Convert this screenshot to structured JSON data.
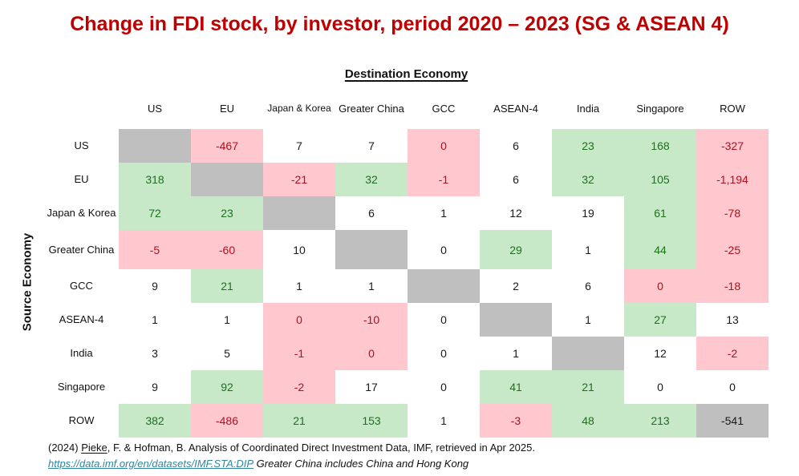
{
  "title": "Change in FDI stock, by investor, period 2020 – 2023 (SG & ASEAN 4)",
  "destination_header": "Destination Economy",
  "source_header": "Source Economy",
  "footnote": {
    "line1_prefix": "(2024) ",
    "line1_author": "Pieke",
    "line1_rest": ", F. & Hofman, B. Analysis of Coordinated Direct Investment Data, IMF, retrieved in Apr 2025.",
    "line2_link": "https://data.imf.org/en/datasets/IMF.STA:DIP",
    "line2_note": "Greater China includes China and Hong Kong"
  },
  "colors": {
    "title": "#c00000",
    "positive_bg": "#c7e9c8",
    "positive_text": "#1d701d",
    "negative_bg": "#ffc7ce",
    "negative_text": "#b01020",
    "diagonal_bg": "#bfbfbf",
    "link": "#31859c"
  },
  "chart_data": {
    "type": "heatmap",
    "title": "Change in FDI stock, by investor, period 2020 – 2023 (SG & ASEAN 4)",
    "x_axis_label": "Destination Economy",
    "y_axis_label": "Source Economy",
    "columns": [
      "US",
      "EU",
      "Japan & Korea",
      "Greater China",
      "GCC",
      "ASEAN-4",
      "India",
      "Singapore",
      "ROW"
    ],
    "rows": [
      "US",
      "EU",
      "Japan & Korea",
      "Greater China",
      "GCC",
      "ASEAN-4",
      "India",
      "Singapore",
      "ROW"
    ],
    "boxed_columns": [
      5,
      7
    ],
    "boxed_rows": [
      5,
      7
    ],
    "cell_color_legend": {
      "green": "increase highlight",
      "red": "decrease highlight",
      "gray": "diagonal / not applicable",
      "white": "neutral"
    },
    "cells": [
      [
        {
          "v": "",
          "bg": "gray"
        },
        {
          "v": "-467",
          "bg": "red"
        },
        {
          "v": "7",
          "bg": "white"
        },
        {
          "v": "7",
          "bg": "white"
        },
        {
          "v": "0",
          "bg": "red"
        },
        {
          "v": "6",
          "bg": "white"
        },
        {
          "v": "23",
          "bg": "green"
        },
        {
          "v": "168",
          "bg": "green"
        },
        {
          "v": "-327",
          "bg": "red"
        }
      ],
      [
        {
          "v": "318",
          "bg": "green"
        },
        {
          "v": "",
          "bg": "gray"
        },
        {
          "v": "-21",
          "bg": "red"
        },
        {
          "v": "32",
          "bg": "green"
        },
        {
          "v": "-1",
          "bg": "red"
        },
        {
          "v": "6",
          "bg": "white"
        },
        {
          "v": "32",
          "bg": "green"
        },
        {
          "v": "105",
          "bg": "green"
        },
        {
          "v": "-1,194",
          "bg": "red"
        }
      ],
      [
        {
          "v": "72",
          "bg": "green"
        },
        {
          "v": "23",
          "bg": "green"
        },
        {
          "v": "",
          "bg": "gray"
        },
        {
          "v": "6",
          "bg": "white"
        },
        {
          "v": "1",
          "bg": "white"
        },
        {
          "v": "12",
          "bg": "white"
        },
        {
          "v": "19",
          "bg": "white"
        },
        {
          "v": "61",
          "bg": "green"
        },
        {
          "v": "-78",
          "bg": "red"
        }
      ],
      [
        {
          "v": "-5",
          "bg": "red"
        },
        {
          "v": "-60",
          "bg": "red"
        },
        {
          "v": "10",
          "bg": "white"
        },
        {
          "v": "",
          "bg": "gray"
        },
        {
          "v": "0",
          "bg": "white"
        },
        {
          "v": "29",
          "bg": "green"
        },
        {
          "v": "1",
          "bg": "white"
        },
        {
          "v": "44",
          "bg": "green"
        },
        {
          "v": "-25",
          "bg": "red"
        }
      ],
      [
        {
          "v": "9",
          "bg": "white"
        },
        {
          "v": "21",
          "bg": "green"
        },
        {
          "v": "1",
          "bg": "white"
        },
        {
          "v": "1",
          "bg": "white"
        },
        {
          "v": "",
          "bg": "gray"
        },
        {
          "v": "2",
          "bg": "white"
        },
        {
          "v": "6",
          "bg": "white"
        },
        {
          "v": "0",
          "bg": "red"
        },
        {
          "v": "-18",
          "bg": "red"
        }
      ],
      [
        {
          "v": "1",
          "bg": "white"
        },
        {
          "v": "1",
          "bg": "white"
        },
        {
          "v": "0",
          "bg": "red"
        },
        {
          "v": "-10",
          "bg": "red"
        },
        {
          "v": "0",
          "bg": "white"
        },
        {
          "v": "",
          "bg": "gray"
        },
        {
          "v": "1",
          "bg": "white"
        },
        {
          "v": "27",
          "bg": "green"
        },
        {
          "v": "13",
          "bg": "white"
        }
      ],
      [
        {
          "v": "3",
          "bg": "white"
        },
        {
          "v": "5",
          "bg": "white"
        },
        {
          "v": "-1",
          "bg": "red"
        },
        {
          "v": "0",
          "bg": "red"
        },
        {
          "v": "0",
          "bg": "white"
        },
        {
          "v": "1",
          "bg": "white"
        },
        {
          "v": "",
          "bg": "gray"
        },
        {
          "v": "12",
          "bg": "white"
        },
        {
          "v": "-2",
          "bg": "red"
        }
      ],
      [
        {
          "v": "9",
          "bg": "white"
        },
        {
          "v": "92",
          "bg": "green"
        },
        {
          "v": "-2",
          "bg": "red"
        },
        {
          "v": "17",
          "bg": "white"
        },
        {
          "v": "0",
          "bg": "white"
        },
        {
          "v": "41",
          "bg": "green"
        },
        {
          "v": "21",
          "bg": "green"
        },
        {
          "v": "0",
          "bg": "white"
        },
        {
          "v": "0",
          "bg": "white"
        }
      ],
      [
        {
          "v": "382",
          "bg": "green"
        },
        {
          "v": "-486",
          "bg": "red"
        },
        {
          "v": "21",
          "bg": "green"
        },
        {
          "v": "153",
          "bg": "green"
        },
        {
          "v": "1",
          "bg": "white"
        },
        {
          "v": "-3",
          "bg": "red"
        },
        {
          "v": "48",
          "bg": "green"
        },
        {
          "v": "213",
          "bg": "green"
        },
        {
          "v": "-541",
          "bg": "gray"
        }
      ]
    ]
  }
}
